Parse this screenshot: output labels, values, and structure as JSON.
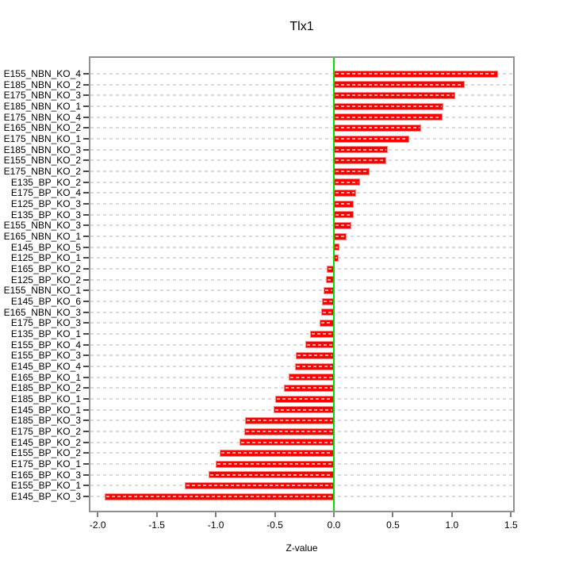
{
  "title": "Tlx1",
  "chart_data": {
    "type": "bar",
    "orientation": "horizontal",
    "title": "Tlx1",
    "xlabel": "Z-value",
    "ylabel": "",
    "xlim": [
      -2.0,
      1.5
    ],
    "x_ticks": [
      -2.0,
      -1.5,
      -1.0,
      -0.5,
      0.0,
      0.5,
      1.0,
      1.5
    ],
    "x_tick_labels": [
      "-2.0",
      "-1.5",
      "-1.0",
      "-0.5",
      "0.0",
      "0.5",
      "1.0",
      "1.5"
    ],
    "grid": true,
    "legend": false,
    "bar_color": "#ff0000",
    "zero_line_color": "#00e100",
    "grid_color": "#d9d9d9",
    "categories": [
      "E155_NBN_KO_4",
      "E185_NBN_KO_2",
      "E175_NBN_KO_3",
      "E185_NBN_KO_1",
      "E175_NBN_KO_4",
      "E165_NBN_KO_2",
      "E175_NBN_KO_1",
      "E185_NBN_KO_3",
      "E155_NBN_KO_2",
      "E175_NBN_KO_2",
      "E135_BP_KO_2",
      "E175_BP_KO_4",
      "E125_BP_KO_3",
      "E135_BP_KO_3",
      "E155_NBN_KO_3",
      "E165_NBN_KO_1",
      "E145_BP_KO_5",
      "E125_BP_KO_1",
      "E165_BP_KO_2",
      "E125_BP_KO_2",
      "E155_NBN_KO_1",
      "E145_BP_KO_6",
      "E165_NBN_KO_3",
      "E175_BP_KO_3",
      "E135_BP_KO_1",
      "E155_BP_KO_4",
      "E155_BP_KO_3",
      "E145_BP_KO_4",
      "E165_BP_KO_1",
      "E185_BP_KO_2",
      "E185_BP_KO_1",
      "E145_BP_KO_1",
      "E185_BP_KO_3",
      "E175_BP_KO_2",
      "E145_BP_KO_2",
      "E155_BP_KO_2",
      "E175_BP_KO_1",
      "E165_BP_KO_3",
      "E155_BP_KO_1",
      "E145_BP_KO_3"
    ],
    "values": [
      1.39,
      1.11,
      1.03,
      0.93,
      0.92,
      0.74,
      0.64,
      0.46,
      0.44,
      0.3,
      0.22,
      0.19,
      0.17,
      0.17,
      0.15,
      0.11,
      0.05,
      0.04,
      -0.06,
      -0.07,
      -0.09,
      -0.1,
      -0.11,
      -0.12,
      -0.2,
      -0.24,
      -0.32,
      -0.33,
      -0.38,
      -0.42,
      -0.5,
      -0.51,
      -0.75,
      -0.76,
      -0.8,
      -0.97,
      -1.0,
      -1.06,
      -1.26,
      -1.94
    ]
  }
}
